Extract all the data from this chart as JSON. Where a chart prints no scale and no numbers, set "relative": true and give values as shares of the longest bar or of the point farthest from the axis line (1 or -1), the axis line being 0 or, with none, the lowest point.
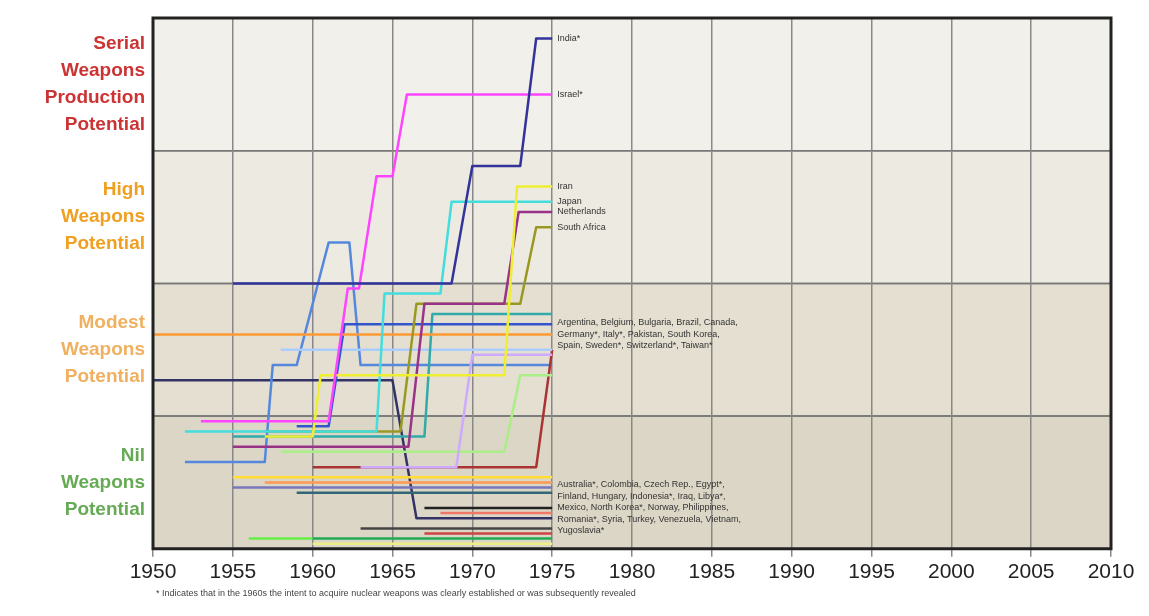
{
  "chart_data": {
    "type": "line",
    "relative": true,
    "xlim": [
      1950,
      2010
    ],
    "xticks": [
      1950,
      1955,
      1960,
      1965,
      1970,
      1975,
      1980,
      1985,
      1990,
      1995,
      2000,
      2005,
      2010
    ],
    "bands": [
      {
        "axis": "y",
        "from": 0,
        "to": 0.26,
        "label": "Nil Weapons Potential",
        "color": "#dcd6c6"
      },
      {
        "axis": "y",
        "from": 0.26,
        "to": 0.52,
        "label": "Modest Weapons Potential",
        "color": "#e4dfd1"
      },
      {
        "axis": "y",
        "from": 0.52,
        "to": 0.78,
        "label": "High Weapons Potential",
        "color": "#edeae1"
      },
      {
        "axis": "y",
        "from": 0.78,
        "to": 1.04,
        "label": "Serial Weapons Production Potential",
        "color": "#f2f0ea"
      }
    ],
    "grid": "x",
    "legend": false,
    "marker": "none",
    "line_style": "solid",
    "series": [
      {
        "name": "India*",
        "color": "#33339a",
        "x": [
          1955,
          1968.7,
          1970,
          1973,
          1974,
          1975
        ],
        "values": [
          0.52,
          0.52,
          0.75,
          0.75,
          1,
          1
        ]
      },
      {
        "name": "Israel*",
        "color": "#ff44ff",
        "x": [
          1953,
          1961,
          1962.2,
          1962.9,
          1964,
          1965,
          1965.9,
          1975
        ],
        "values": [
          0.25,
          0.25,
          0.51,
          0.51,
          0.73,
          0.73,
          0.89,
          0.89
        ]
      },
      {
        "name": "Iran",
        "color": "#eeee33",
        "x": [
          1957,
          1960,
          1960.5,
          1972,
          1972.8,
          1975
        ],
        "values": [
          0.22,
          0.22,
          0.34,
          0.34,
          0.71,
          0.71
        ]
      },
      {
        "name": "Japan",
        "color": "#44dddd",
        "x": [
          1952,
          1964,
          1964.5,
          1968,
          1968.7,
          1975
        ],
        "values": [
          0.23,
          0.23,
          0.5,
          0.5,
          0.68,
          0.68
        ]
      },
      {
        "name": "Netherlands",
        "color": "#993388",
        "x": [
          1955,
          1966,
          1967,
          1972,
          1972.9,
          1975
        ],
        "values": [
          0.2,
          0.2,
          0.48,
          0.48,
          0.66,
          0.66
        ]
      },
      {
        "name": "South Africa",
        "color": "#999922",
        "x": [
          1957,
          1965.5,
          1966.5,
          1973,
          1974,
          1975
        ],
        "values": [
          0.23,
          0.23,
          0.48,
          0.48,
          0.63,
          0.63
        ]
      },
      {
        "color": "#ff9933",
        "x": [
          1950,
          1975
        ],
        "values": [
          0.42,
          0.42
        ]
      },
      {
        "color": "#3355cc",
        "x": [
          1959,
          1961,
          1962,
          1975
        ],
        "values": [
          0.24,
          0.24,
          0.44,
          0.44
        ]
      },
      {
        "color": "#33aaaa",
        "x": [
          1955,
          1967,
          1967.5,
          1975
        ],
        "values": [
          0.22,
          0.22,
          0.46,
          0.46
        ]
      },
      {
        "color": "#aaccff",
        "x": [
          1958,
          1975
        ],
        "values": [
          0.39,
          0.39
        ]
      },
      {
        "color": "#ccaaff",
        "x": [
          1963,
          1969,
          1970,
          1975
        ],
        "values": [
          0.16,
          0.16,
          0.38,
          0.38
        ]
      },
      {
        "color": "#aaee88",
        "x": [
          1958,
          1972,
          1973,
          1975
        ],
        "values": [
          0.19,
          0.19,
          0.34,
          0.34
        ]
      },
      {
        "color": "#aa3333",
        "x": [
          1960,
          1974,
          1975
        ],
        "values": [
          0.16,
          0.16,
          0.39
        ]
      },
      {
        "color": "#5588dd",
        "x": [
          1952,
          1957,
          1957.5,
          1959,
          1961,
          1962.3,
          1963,
          1975
        ],
        "values": [
          0.17,
          0.17,
          0.36,
          0.36,
          0.6,
          0.6,
          0.36,
          0.36
        ]
      },
      {
        "color": "#ffdd33",
        "x": [
          1955,
          1975
        ],
        "values": [
          0.14,
          0.14
        ]
      },
      {
        "color": "#ff9955",
        "x": [
          1957,
          1975
        ],
        "values": [
          0.13,
          0.13
        ]
      },
      {
        "color": "#7777bb",
        "x": [
          1955,
          1975
        ],
        "values": [
          0.12,
          0.12
        ]
      },
      {
        "color": "#336677",
        "x": [
          1959,
          1975
        ],
        "values": [
          0.11,
          0.11
        ]
      },
      {
        "color": "#222222",
        "x": [
          1967,
          1975
        ],
        "values": [
          0.08,
          0.08
        ]
      },
      {
        "color": "#ee7766",
        "x": [
          1968,
          1975
        ],
        "values": [
          0.07,
          0.07
        ]
      },
      {
        "color": "#333366",
        "x": [
          1950,
          1965,
          1966.5,
          1975
        ],
        "values": [
          0.33,
          0.33,
          0.06,
          0.06
        ]
      },
      {
        "color": "#444444",
        "x": [
          1963,
          1975
        ],
        "values": [
          0.04,
          0.04
        ]
      },
      {
        "color": "#cc4444",
        "x": [
          1967,
          1975
        ],
        "values": [
          0.03,
          0.03
        ]
      },
      {
        "color": "#22aa55",
        "x": [
          1960,
          1975
        ],
        "values": [
          0.02,
          0.02
        ]
      },
      {
        "color": "#66ee44",
        "x": [
          1956,
          1960
        ],
        "values": [
          0.02,
          0.02
        ]
      },
      {
        "color": "#eeee88",
        "x": [
          1960,
          1975
        ],
        "values": [
          0.01,
          0.01
        ]
      }
    ],
    "annotations": [
      {
        "text": "Argentina, Belgium, Bulgaria, Brazil, Canada, Germany*, Italy*, Pakistan, South Korea, Spain, Sweden*, Switzerland*, Taiwan*",
        "x": 1975,
        "y": 0.42
      },
      {
        "text": "Australia*, Colombia, Czech Rep., Egypt*, Finland, Hungary, Indonesia*, Iraq, Libya*, Mexico, North Korea*, Norway, Philippines, Romania*, Syria, Turkey, Venezuela, Vietnam, Yugoslavia*",
        "x": 1975,
        "y": 0.08
      },
      "* Indicates that in the 1960s the intent to acquire nuclear weapons was clearly established or was subsequently revealed"
    ]
  }
}
